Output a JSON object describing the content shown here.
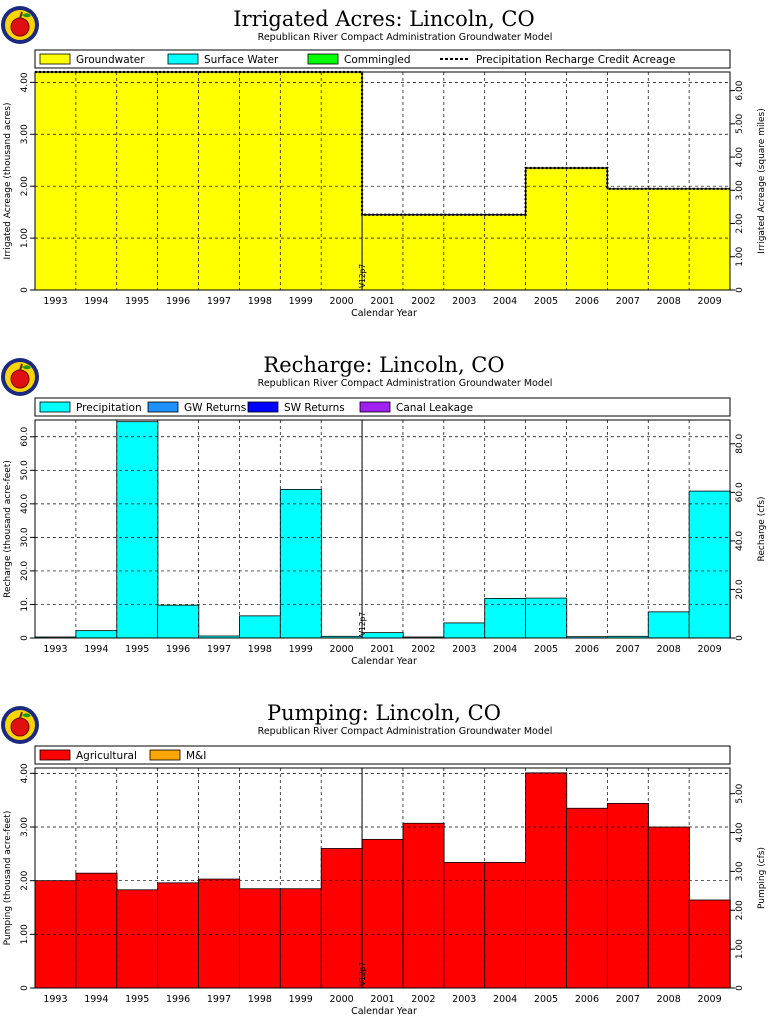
{
  "colors": {
    "groundwater": "#ffff00",
    "surface_water": "#00ffff",
    "commingled": "#00ff00",
    "gw_returns": "#1e90ff",
    "sw_returns": "#0000ff",
    "canal_leakage": "#a020f0",
    "agricultural": "#ff0000",
    "mi": "#ffa500",
    "logo_ring": "#1a2a80",
    "logo_fill": "#ffd400",
    "logo_apple": "#e01010"
  },
  "logo": {
    "icon": "apple-logo-icon"
  },
  "marker_label": "V12p7",
  "chart_data": [
    {
      "type": "area",
      "title": "Irrigated Acres: Lincoln, CO",
      "subtitle": "Republican River Compact Administration Groundwater Model",
      "xlabel": "Calendar Year",
      "ylabel": "Irrigated Acreage (thousand acres)",
      "ylabel_right": "Irrigated Acreage (square miles)",
      "x": [
        "1993",
        "1994",
        "1995",
        "1996",
        "1997",
        "1998",
        "1999",
        "2000",
        "2001",
        "2002",
        "2003",
        "2004",
        "2005",
        "2006",
        "2007",
        "2008",
        "2009"
      ],
      "ylim": [
        0,
        4.2
      ],
      "yticks": [
        0,
        1.0,
        2.0,
        3.0,
        4.0
      ],
      "ytick_labels": [
        "0",
        "1.00",
        "2.00",
        "3.00",
        "4.00"
      ],
      "ylim_right": [
        0,
        6.56
      ],
      "yticks_right": [
        0,
        1.0,
        2.0,
        3.0,
        4.0,
        5.0,
        6.0
      ],
      "ytick_labels_right": [
        "0",
        "1.00",
        "2.00",
        "3.00",
        "4.00",
        "5.00",
        "6.00"
      ],
      "stacked": true,
      "legend": [
        {
          "label": "Groundwater",
          "kind": "swatch",
          "color": "#ffff00"
        },
        {
          "label": "Surface Water",
          "kind": "swatch",
          "color": "#00ffff"
        },
        {
          "label": "Commingled",
          "kind": "swatch",
          "color": "#00ff00"
        },
        {
          "label": "Precipitation Recharge Credit Acreage",
          "kind": "dashed",
          "color": "#000000"
        }
      ],
      "legend_placement": "top",
      "series": [
        {
          "name": "Groundwater",
          "color": "#ffff00",
          "values": [
            4.2,
            4.2,
            4.2,
            4.2,
            4.2,
            4.2,
            4.2,
            4.2,
            1.45,
            1.45,
            1.45,
            1.45,
            2.35,
            2.35,
            1.95,
            1.95,
            1.95
          ]
        },
        {
          "name": "Surface Water",
          "color": "#00ffff",
          "values": [
            0,
            0,
            0,
            0,
            0,
            0,
            0,
            0,
            0,
            0,
            0,
            0,
            0,
            0,
            0,
            0,
            0
          ]
        },
        {
          "name": "Commingled",
          "color": "#00ff00",
          "values": [
            0,
            0,
            0,
            0,
            0,
            0,
            0,
            0,
            0,
            0,
            0,
            0,
            0,
            0,
            0,
            0,
            0
          ]
        }
      ],
      "line_series": {
        "name": "Precipitation Recharge Credit Acreage",
        "values": [
          4.2,
          4.2,
          4.2,
          4.2,
          4.2,
          4.2,
          4.2,
          4.2,
          1.45,
          1.45,
          1.45,
          1.45,
          2.35,
          2.35,
          1.95,
          1.95,
          1.95
        ]
      },
      "marker_year_index": 8,
      "grid": true
    },
    {
      "type": "bar",
      "title": "Recharge: Lincoln, CO",
      "subtitle": "Republican River Compact Administration Groundwater Model",
      "xlabel": "Calendar Year",
      "ylabel": "Recharge (thousand acre-feet)",
      "ylabel_right": "Recharge (cfs)",
      "x": [
        "1993",
        "1994",
        "1995",
        "1996",
        "1997",
        "1998",
        "1999",
        "2000",
        "2001",
        "2002",
        "2003",
        "2004",
        "2005",
        "2006",
        "2007",
        "2008",
        "2009"
      ],
      "ylim": [
        0,
        65
      ],
      "yticks": [
        0,
        10,
        20,
        30,
        40,
        50,
        60
      ],
      "ytick_labels": [
        "0",
        "10.",
        "20.0",
        "30.0",
        "40.0",
        "50.0",
        "60.0"
      ],
      "ylim_right": [
        0,
        89.8
      ],
      "yticks_right": [
        0,
        20,
        40,
        60,
        80
      ],
      "ytick_labels_right": [
        "0",
        "20.0",
        "40.0",
        "60.0",
        "80.0"
      ],
      "stacked": true,
      "legend": [
        {
          "label": "Precipitation",
          "kind": "swatch",
          "color": "#00ffff"
        },
        {
          "label": "GW Returns",
          "kind": "swatch",
          "color": "#1e90ff"
        },
        {
          "label": "SW Returns",
          "kind": "swatch",
          "color": "#0000ff"
        },
        {
          "label": "Canal Leakage",
          "kind": "swatch",
          "color": "#a020f0"
        }
      ],
      "legend_placement": "top",
      "series": [
        {
          "name": "Precipitation",
          "color": "#00ffff",
          "values": [
            0.3,
            2.2,
            64.5,
            9.8,
            0.6,
            6.6,
            44.3,
            0.5,
            1.6,
            0.3,
            4.5,
            11.8,
            11.9,
            0.4,
            0.5,
            7.8,
            43.8
          ]
        },
        {
          "name": "GW Returns",
          "color": "#1e90ff",
          "values": [
            0,
            0,
            0,
            0,
            0,
            0,
            0,
            0,
            0,
            0,
            0,
            0,
            0,
            0,
            0,
            0,
            0
          ]
        },
        {
          "name": "SW Returns",
          "color": "#0000ff",
          "values": [
            0,
            0,
            0,
            0,
            0,
            0,
            0,
            0,
            0,
            0,
            0,
            0,
            0,
            0,
            0,
            0,
            0
          ]
        },
        {
          "name": "Canal Leakage",
          "color": "#a020f0",
          "values": [
            0,
            0,
            0,
            0,
            0,
            0,
            0,
            0,
            0,
            0,
            0,
            0,
            0,
            0,
            0,
            0,
            0
          ]
        }
      ],
      "marker_year_index": 8,
      "grid": true
    },
    {
      "type": "bar",
      "title": "Pumping: Lincoln, CO",
      "subtitle": "Republican River Compact Administration Groundwater Model",
      "xlabel": "Calendar Year",
      "ylabel": "Pumping (thousand acre-feet)",
      "ylabel_right": "Pumping (cfs)",
      "x": [
        "1993",
        "1994",
        "1995",
        "1996",
        "1997",
        "1998",
        "1999",
        "2000",
        "2001",
        "2002",
        "2003",
        "2004",
        "2005",
        "2006",
        "2007",
        "2008",
        "2009"
      ],
      "ylim": [
        0,
        4.1
      ],
      "yticks": [
        0,
        1.0,
        2.0,
        3.0,
        4.0
      ],
      "ytick_labels": [
        "0",
        "1.00",
        "2.00",
        "3.00",
        "4.00"
      ],
      "ylim_right": [
        0,
        5.66
      ],
      "yticks_right": [
        0,
        1.0,
        2.0,
        3.0,
        4.0,
        5.0
      ],
      "ytick_labels_right": [
        "0",
        "1.00",
        "2.00",
        "3.00",
        "4.00",
        "5.00"
      ],
      "stacked": true,
      "legend": [
        {
          "label": "Agricultural",
          "kind": "swatch",
          "color": "#ff0000"
        },
        {
          "label": "M&I",
          "kind": "swatch",
          "color": "#ffa500"
        }
      ],
      "legend_placement": "top",
      "series": [
        {
          "name": "Agricultural",
          "color": "#ff0000",
          "values": [
            2.0,
            2.14,
            1.83,
            1.96,
            2.03,
            1.85,
            1.85,
            2.6,
            2.77,
            3.07,
            2.34,
            2.34,
            4.01,
            3.35,
            3.44,
            3.0,
            1.64
          ]
        },
        {
          "name": "M&I",
          "color": "#ffa500",
          "values": [
            0,
            0,
            0,
            0,
            0,
            0,
            0,
            0,
            0,
            0,
            0,
            0,
            0,
            0,
            0,
            0,
            0
          ]
        }
      ],
      "marker_year_index": 8,
      "grid": true
    }
  ]
}
